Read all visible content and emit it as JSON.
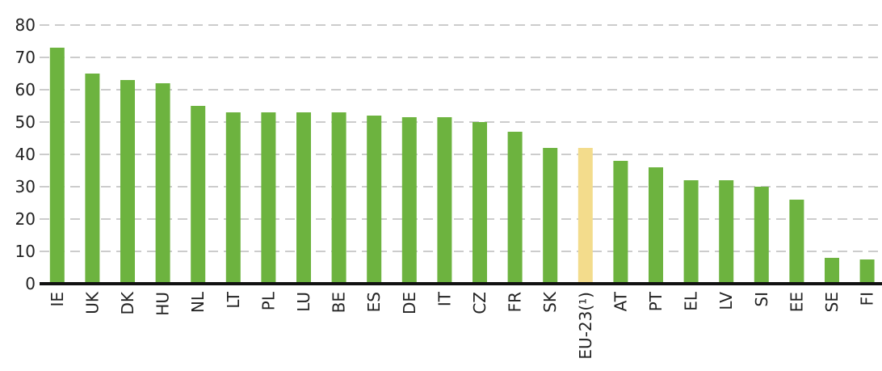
{
  "chart_data": {
    "type": "bar",
    "categories": [
      "IE",
      "UK",
      "DK",
      "HU",
      "NL",
      "LT",
      "PL",
      "LU",
      "BE",
      "ES",
      "DE",
      "IT",
      "CZ",
      "FR",
      "SK",
      "EU-23(¹)",
      "AT",
      "PT",
      "EL",
      "LV",
      "SI",
      "EE",
      "SE",
      "FI"
    ],
    "values": [
      73,
      65,
      63,
      62,
      55,
      53,
      53,
      53,
      53,
      52,
      51.5,
      51.5,
      50,
      47,
      42,
      42,
      38,
      36,
      32,
      32,
      30,
      26,
      8,
      7.5
    ],
    "colors": [
      "#6db33f",
      "#6db33f",
      "#6db33f",
      "#6db33f",
      "#6db33f",
      "#6db33f",
      "#6db33f",
      "#6db33f",
      "#6db33f",
      "#6db33f",
      "#6db33f",
      "#6db33f",
      "#6db33f",
      "#6db33f",
      "#6db33f",
      "#f3dc8c",
      "#6db33f",
      "#6db33f",
      "#6db33f",
      "#6db33f",
      "#6db33f",
      "#6db33f",
      "#6db33f",
      "#6db33f"
    ],
    "ylim": [
      0,
      80
    ],
    "yticks": [
      0,
      10,
      20,
      30,
      40,
      50,
      60,
      70,
      80
    ],
    "grid": true
  }
}
